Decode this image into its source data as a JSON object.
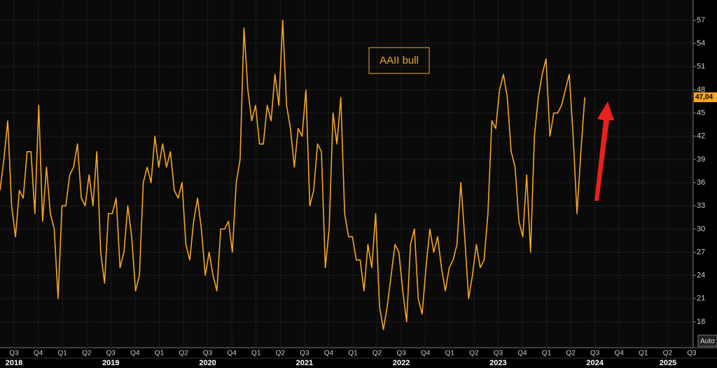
{
  "chart_data": {
    "type": "line",
    "series": [
      {
        "name": "AAII bull",
        "color": "#f5a623",
        "values": [
          35,
          39,
          44,
          33,
          29,
          35,
          34,
          40,
          40,
          32,
          46,
          31,
          38,
          32,
          30,
          21,
          33,
          33,
          37,
          38,
          41,
          34,
          33,
          37,
          33,
          40,
          27,
          23,
          32,
          32,
          34,
          25,
          27,
          33,
          29,
          22,
          24,
          36,
          38,
          36,
          42,
          38,
          41,
          38,
          40,
          35,
          34,
          36,
          28,
          26,
          31,
          34,
          30,
          24,
          27,
          24,
          22,
          30,
          30,
          31,
          27,
          36,
          39,
          56,
          48,
          44,
          46,
          41,
          41,
          46,
          44,
          50,
          46,
          57,
          46,
          43,
          38,
          43,
          42,
          48,
          33,
          35,
          41,
          40,
          25,
          30,
          45,
          41,
          47,
          32,
          29,
          29,
          26,
          26,
          22,
          28,
          25,
          32,
          20,
          17,
          20,
          24,
          28,
          27,
          22,
          18,
          28,
          30,
          21,
          19,
          25,
          30,
          27,
          29,
          25,
          22,
          25,
          26,
          28,
          36,
          29,
          21,
          24,
          28,
          25,
          26,
          32,
          44,
          43,
          48,
          50,
          47,
          40,
          38,
          31,
          29,
          37,
          27,
          42,
          47,
          50,
          52,
          42,
          45,
          45,
          46,
          48,
          50,
          42,
          32,
          40,
          47.04
        ]
      }
    ],
    "x": [
      2018.48,
      2018.52,
      2018.56,
      2018.6,
      2018.64,
      2018.68,
      2018.72,
      2018.76,
      2018.8,
      2018.84,
      2018.88,
      2018.92,
      2018.96,
      2019.0,
      2019.04,
      2019.08,
      2019.12,
      2019.16,
      2019.2,
      2019.24,
      2019.28,
      2019.32,
      2019.36,
      2019.4,
      2019.44,
      2019.48,
      2019.52,
      2019.56,
      2019.6,
      2019.64,
      2019.68,
      2019.72,
      2019.76,
      2019.8,
      2019.84,
      2019.88,
      2019.92,
      2019.96,
      2020.0,
      2020.04,
      2020.08,
      2020.12,
      2020.16,
      2020.2,
      2020.24,
      2020.28,
      2020.32,
      2020.36,
      2020.4,
      2020.44,
      2020.48,
      2020.52,
      2020.56,
      2020.6,
      2020.64,
      2020.68,
      2020.72,
      2020.76,
      2020.8,
      2020.84,
      2020.88,
      2020.92,
      2020.96,
      2021.0,
      2021.04,
      2021.08,
      2021.12,
      2021.16,
      2021.2,
      2021.24,
      2021.28,
      2021.32,
      2021.36,
      2021.4,
      2021.44,
      2021.48,
      2021.52,
      2021.56,
      2021.6,
      2021.64,
      2021.68,
      2021.72,
      2021.76,
      2021.8,
      2021.84,
      2021.88,
      2021.92,
      2021.96,
      2022.0,
      2022.04,
      2022.08,
      2022.12,
      2022.16,
      2022.2,
      2022.24,
      2022.28,
      2022.32,
      2022.36,
      2022.4,
      2022.44,
      2022.48,
      2022.52,
      2022.56,
      2022.6,
      2022.64,
      2022.68,
      2022.72,
      2022.76,
      2022.8,
      2022.84,
      2022.88,
      2022.92,
      2022.96,
      2023.0,
      2023.04,
      2023.08,
      2023.12,
      2023.16,
      2023.2,
      2023.24,
      2023.28,
      2023.32,
      2023.36,
      2023.4,
      2023.44,
      2023.48,
      2023.52,
      2023.56,
      2023.6,
      2023.64,
      2023.68,
      2023.72,
      2023.76,
      2023.8,
      2023.84,
      2023.88,
      2023.92,
      2023.96,
      2024.0,
      2024.04,
      2024.08,
      2024.12,
      2024.16,
      2024.2,
      2024.24,
      2024.28,
      2024.32,
      2024.36,
      2024.4,
      2024.44,
      2024.48,
      2024.52
    ],
    "xlim": [
      2018.48,
      2025.64
    ],
    "xticks": [
      {
        "value": 2018.625,
        "label": "Q3"
      },
      {
        "value": 2018.875,
        "label": "Q4"
      },
      {
        "value": 2019.125,
        "label": "Q1"
      },
      {
        "value": 2019.375,
        "label": "Q2"
      },
      {
        "value": 2019.625,
        "label": "Q3"
      },
      {
        "value": 2019.875,
        "label": "Q4"
      },
      {
        "value": 2020.125,
        "label": "Q1"
      },
      {
        "value": 2020.375,
        "label": "Q2"
      },
      {
        "value": 2020.625,
        "label": "Q3"
      },
      {
        "value": 2020.875,
        "label": "Q4"
      },
      {
        "value": 2021.125,
        "label": "Q1"
      },
      {
        "value": 2021.375,
        "label": "Q2"
      },
      {
        "value": 2021.625,
        "label": "Q3"
      },
      {
        "value": 2021.875,
        "label": "Q4"
      },
      {
        "value": 2022.125,
        "label": "Q1"
      },
      {
        "value": 2022.375,
        "label": "Q2"
      },
      {
        "value": 2022.625,
        "label": "Q3"
      },
      {
        "value": 2022.875,
        "label": "Q4"
      },
      {
        "value": 2023.125,
        "label": "Q1"
      },
      {
        "value": 2023.375,
        "label": "Q2"
      },
      {
        "value": 2023.625,
        "label": "Q3"
      },
      {
        "value": 2023.875,
        "label": "Q4"
      },
      {
        "value": 2024.125,
        "label": "Q1"
      },
      {
        "value": 2024.375,
        "label": "Q2"
      },
      {
        "value": 2024.625,
        "label": "Q3"
      },
      {
        "value": 2024.875,
        "label": "Q4"
      },
      {
        "value": 2025.125,
        "label": "Q1"
      },
      {
        "value": 2025.375,
        "label": "Q2"
      },
      {
        "value": 2025.625,
        "label": "Q3"
      }
    ],
    "year_labels": [
      {
        "value": 2018.625,
        "label": "2018"
      },
      {
        "value": 2019.625,
        "label": "2019"
      },
      {
        "value": 2020.625,
        "label": "2020"
      },
      {
        "value": 2021.625,
        "label": "2021"
      },
      {
        "value": 2022.625,
        "label": "2022"
      },
      {
        "value": 2023.625,
        "label": "2023"
      },
      {
        "value": 2024.625,
        "label": "2024"
      },
      {
        "value": 2025.38,
        "label": "2025"
      }
    ],
    "ylim": [
      14.65,
      59.62
    ],
    "yticks": [
      18,
      21,
      24,
      27,
      30,
      33,
      36,
      39,
      42,
      45,
      48,
      51,
      54,
      57
    ],
    "last_value": {
      "value": 47.04,
      "label": "47,04"
    },
    "axis_mode": "Auto",
    "grid": true
  }
}
